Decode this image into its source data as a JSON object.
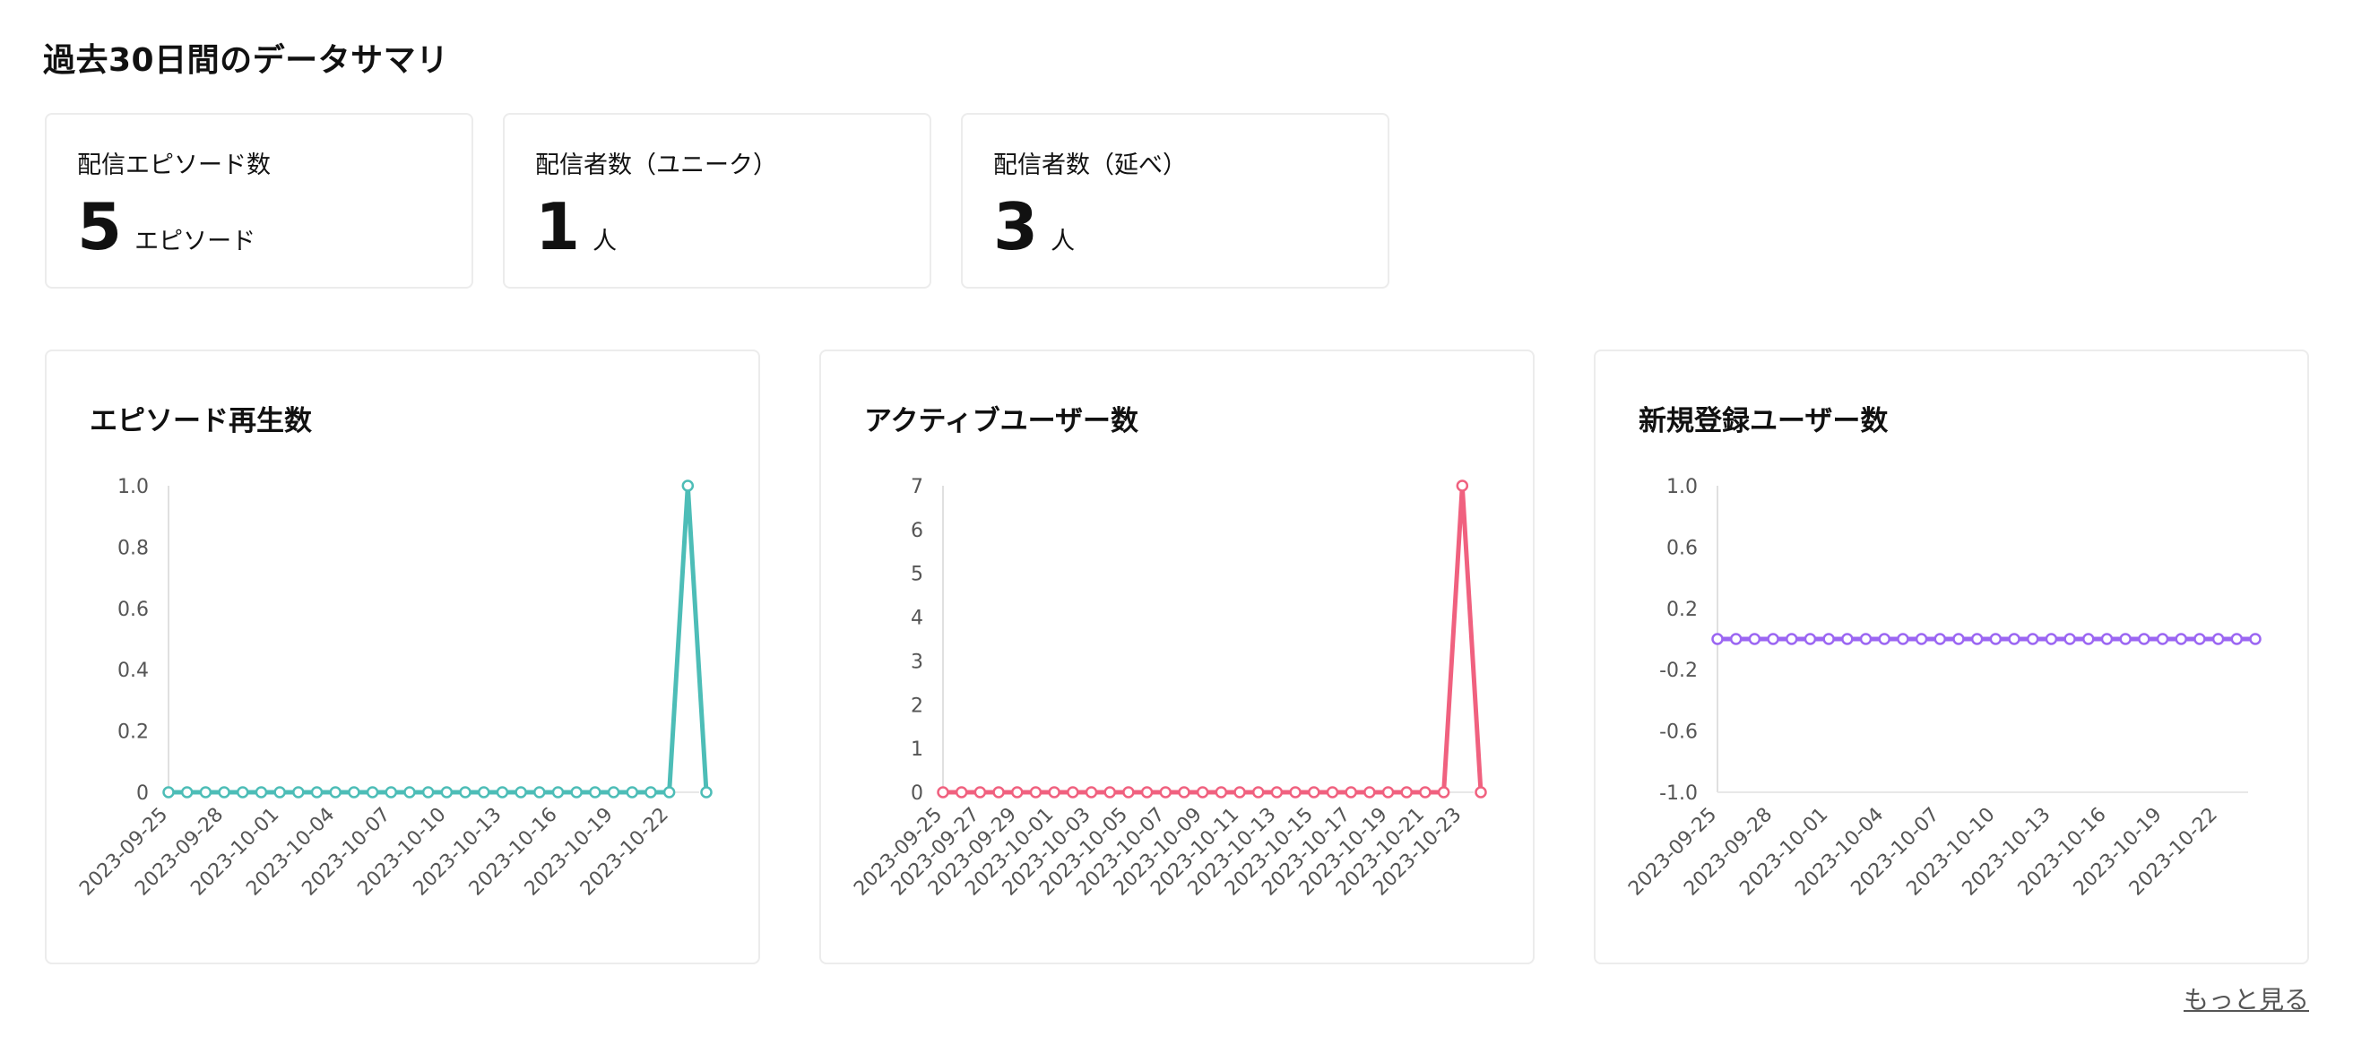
{
  "page_title": "過去30日間のデータサマリ",
  "stats": [
    {
      "label": "配信エピソード数",
      "value": "5",
      "unit": "エピソード"
    },
    {
      "label": "配信者数（ユニーク）",
      "value": "1",
      "unit": "人"
    },
    {
      "label": "配信者数（延べ）",
      "value": "3",
      "unit": "人"
    }
  ],
  "more_link": "もっと見る",
  "chart_data": [
    {
      "type": "line",
      "title": "エピソード再生数",
      "color": "#4dbdb7",
      "ylim": [
        0,
        1.0
      ],
      "yticks": [
        "0",
        "0.2",
        "0.4",
        "0.6",
        "0.8",
        "1.0"
      ],
      "x": [
        "2023-09-25",
        "2023-09-26",
        "2023-09-27",
        "2023-09-28",
        "2023-09-29",
        "2023-09-30",
        "2023-10-01",
        "2023-10-02",
        "2023-10-03",
        "2023-10-04",
        "2023-10-05",
        "2023-10-06",
        "2023-10-07",
        "2023-10-08",
        "2023-10-09",
        "2023-10-10",
        "2023-10-11",
        "2023-10-12",
        "2023-10-13",
        "2023-10-14",
        "2023-10-15",
        "2023-10-16",
        "2023-10-17",
        "2023-10-18",
        "2023-10-19",
        "2023-10-20",
        "2023-10-21",
        "2023-10-22",
        "2023-10-23",
        "2023-10-24"
      ],
      "xticks": [
        "2023-09-25",
        "2023-09-28",
        "2023-10-01",
        "2023-10-04",
        "2023-10-07",
        "2023-10-10",
        "2023-10-13",
        "2023-10-16",
        "2023-10-19",
        "2023-10-22"
      ],
      "values": [
        0,
        0,
        0,
        0,
        0,
        0,
        0,
        0,
        0,
        0,
        0,
        0,
        0,
        0,
        0,
        0,
        0,
        0,
        0,
        0,
        0,
        0,
        0,
        0,
        0,
        0,
        0,
        0,
        1,
        0
      ]
    },
    {
      "type": "line",
      "title": "アクティブユーザー数",
      "color": "#f0617f",
      "ylim": [
        0,
        7
      ],
      "yticks": [
        "0",
        "1",
        "2",
        "3",
        "4",
        "5",
        "6",
        "7"
      ],
      "x": [
        "2023-09-25",
        "2023-09-26",
        "2023-09-27",
        "2023-09-28",
        "2023-09-29",
        "2023-09-30",
        "2023-10-01",
        "2023-10-02",
        "2023-10-03",
        "2023-10-04",
        "2023-10-05",
        "2023-10-06",
        "2023-10-07",
        "2023-10-08",
        "2023-10-09",
        "2023-10-10",
        "2023-10-11",
        "2023-10-12",
        "2023-10-13",
        "2023-10-14",
        "2023-10-15",
        "2023-10-16",
        "2023-10-17",
        "2023-10-18",
        "2023-10-19",
        "2023-10-20",
        "2023-10-21",
        "2023-10-22",
        "2023-10-23",
        "2023-10-24"
      ],
      "xticks": [
        "2023-09-25",
        "2023-09-27",
        "2023-09-29",
        "2023-10-01",
        "2023-10-03",
        "2023-10-05",
        "2023-10-07",
        "2023-10-09",
        "2023-10-11",
        "2023-10-13",
        "2023-10-15",
        "2023-10-17",
        "2023-10-19",
        "2023-10-21",
        "2023-10-23"
      ],
      "values": [
        0,
        0,
        0,
        0,
        0,
        0,
        0,
        0,
        0,
        0,
        0,
        0,
        0,
        0,
        0,
        0,
        0,
        0,
        0,
        0,
        0,
        0,
        0,
        0,
        0,
        0,
        0,
        0,
        7,
        0
      ]
    },
    {
      "type": "line",
      "title": "新規登録ユーザー数",
      "color": "#9b66f2",
      "ylim": [
        -1.0,
        1.0
      ],
      "yticks": [
        "-1.0",
        "-0.6",
        "-0.2",
        "0.2",
        "0.6",
        "1.0"
      ],
      "x": [
        "2023-09-25",
        "2023-09-26",
        "2023-09-27",
        "2023-09-28",
        "2023-09-29",
        "2023-09-30",
        "2023-10-01",
        "2023-10-02",
        "2023-10-03",
        "2023-10-04",
        "2023-10-05",
        "2023-10-06",
        "2023-10-07",
        "2023-10-08",
        "2023-10-09",
        "2023-10-10",
        "2023-10-11",
        "2023-10-12",
        "2023-10-13",
        "2023-10-14",
        "2023-10-15",
        "2023-10-16",
        "2023-10-17",
        "2023-10-18",
        "2023-10-19",
        "2023-10-20",
        "2023-10-21",
        "2023-10-22",
        "2023-10-23",
        "2023-10-24"
      ],
      "xticks": [
        "2023-09-25",
        "2023-09-28",
        "2023-10-01",
        "2023-10-04",
        "2023-10-07",
        "2023-10-10",
        "2023-10-13",
        "2023-10-16",
        "2023-10-19",
        "2023-10-22"
      ],
      "values": [
        0,
        0,
        0,
        0,
        0,
        0,
        0,
        0,
        0,
        0,
        0,
        0,
        0,
        0,
        0,
        0,
        0,
        0,
        0,
        0,
        0,
        0,
        0,
        0,
        0,
        0,
        0,
        0,
        0,
        0
      ]
    }
  ]
}
